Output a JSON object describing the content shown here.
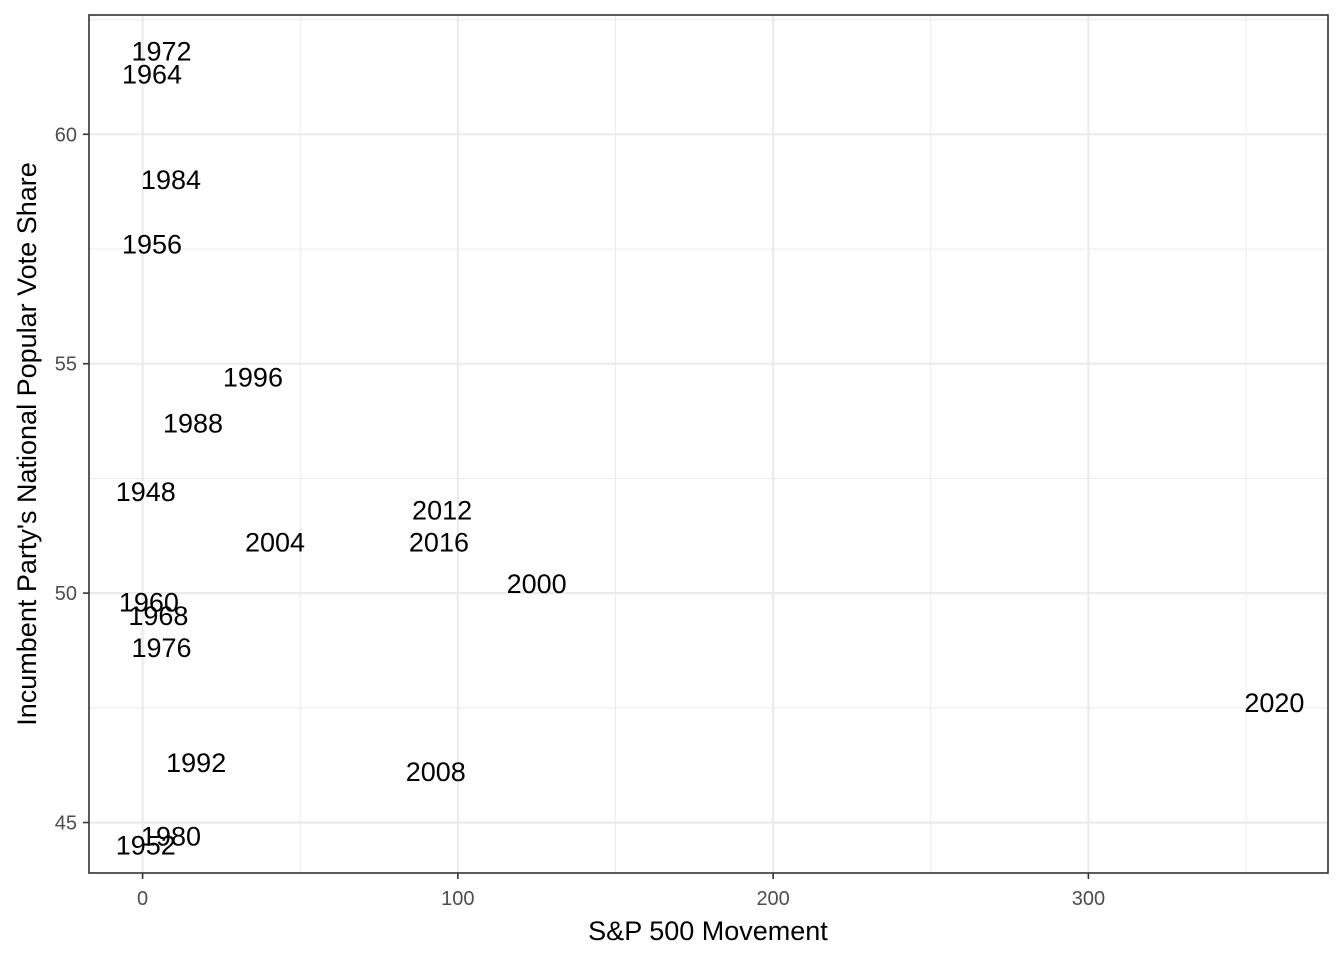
{
  "chart_data": {
    "type": "scatter",
    "title": "",
    "xlabel": "S&P 500 Movement",
    "ylabel": "Incumbent Party's National Popular Vote Share",
    "xlim": [
      -17,
      376
    ],
    "ylim": [
      43.9,
      62.6
    ],
    "x_ticks": [
      0,
      100,
      200,
      300
    ],
    "y_ticks": [
      45,
      50,
      55,
      60
    ],
    "grid": true,
    "legend": "none",
    "points": [
      {
        "label": "1972",
        "x": 6,
        "y": 61.8
      },
      {
        "label": "1964",
        "x": 3,
        "y": 61.3
      },
      {
        "label": "1984",
        "x": 9,
        "y": 59.0
      },
      {
        "label": "1956",
        "x": 3,
        "y": 57.6
      },
      {
        "label": "1996",
        "x": 35,
        "y": 54.7
      },
      {
        "label": "1988",
        "x": 16,
        "y": 53.7
      },
      {
        "label": "1948",
        "x": 1,
        "y": 52.2
      },
      {
        "label": "2012",
        "x": 95,
        "y": 51.8
      },
      {
        "label": "2004",
        "x": 42,
        "y": 51.1
      },
      {
        "label": "2016",
        "x": 94,
        "y": 51.1
      },
      {
        "label": "2000",
        "x": 125,
        "y": 50.2
      },
      {
        "label": "1960",
        "x": 2,
        "y": 49.8
      },
      {
        "label": "1968",
        "x": 5,
        "y": 49.5
      },
      {
        "label": "1976",
        "x": 6,
        "y": 48.8
      },
      {
        "label": "2020",
        "x": 359,
        "y": 47.6
      },
      {
        "label": "1992",
        "x": 17,
        "y": 46.3
      },
      {
        "label": "2008",
        "x": 93,
        "y": 46.1
      },
      {
        "label": "1980",
        "x": 9,
        "y": 44.7
      },
      {
        "label": "1952",
        "x": 1,
        "y": 44.5
      }
    ]
  }
}
